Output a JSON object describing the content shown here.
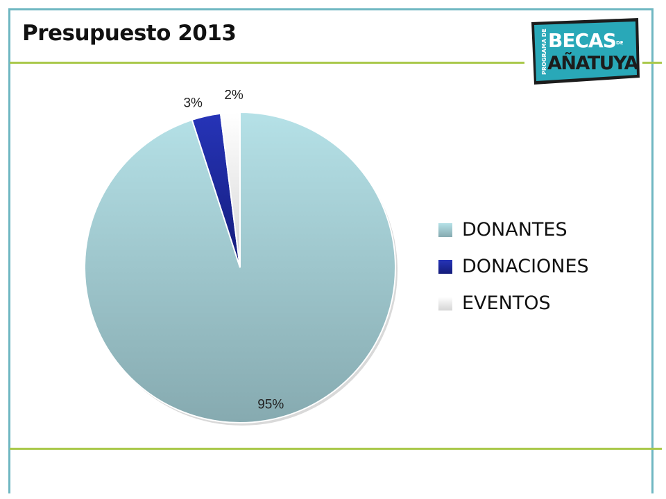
{
  "title": "Presupuesto 2013",
  "logo": {
    "line1": "BECAS",
    "line1_small": "DE",
    "line2": "AÑATUYA",
    "side_text": "PROGRAMA DE"
  },
  "colors": {
    "frame": "#6fb7c2",
    "divider": "#a9c84a",
    "logo_bg": "#29a8b8"
  },
  "chart_data": {
    "type": "pie",
    "categories": [
      "DONANTES",
      "DONACIONES",
      "EVENTOS"
    ],
    "values": [
      95,
      3,
      2
    ],
    "labels": [
      "95%",
      "3%",
      "2%"
    ],
    "colors": [
      "#a9d7de",
      "#1f2a9e",
      "#f2f2f2"
    ],
    "legend": "right"
  }
}
